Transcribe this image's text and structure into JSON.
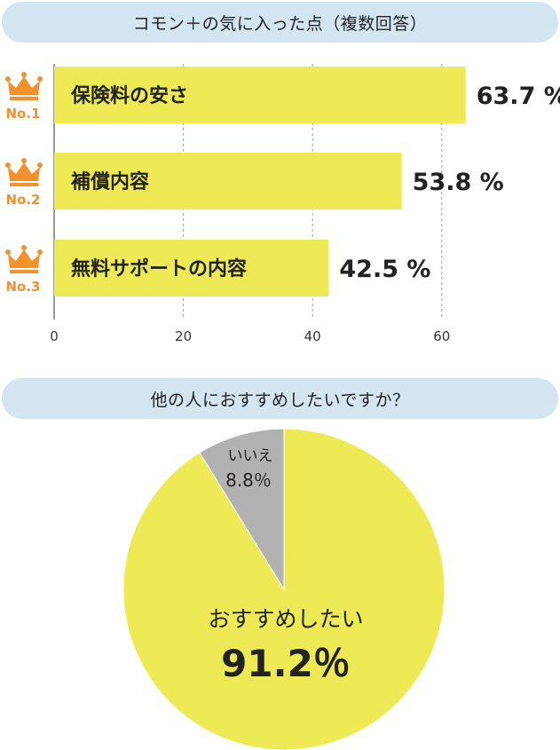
{
  "chart_data": [
    {
      "type": "bar",
      "orientation": "horizontal",
      "title": "コモン＋の気に入った点（複数回答）",
      "categories": [
        "保険料の安さ",
        "補償内容",
        "無料サポートの内容"
      ],
      "values": [
        63.7,
        53.8,
        42.5
      ],
      "value_labels": [
        "63.7 %",
        "53.8 %",
        "42.5 %"
      ],
      "ranks": [
        "No.1",
        "No.2",
        "No.3"
      ],
      "ticks": [
        "0",
        "20",
        "40",
        "60"
      ],
      "xlim": [
        0,
        70
      ],
      "xlabel": "",
      "ylabel": "",
      "grid": true,
      "colors": {
        "bar": "#eeea55",
        "rank": "#f3912d",
        "label": "#222222",
        "grid": "#9a9a9a"
      }
    },
    {
      "type": "pie",
      "title": "他の人におすすめしたいですか？",
      "slices": [
        {
          "label": "おすすめしたい",
          "value": 91.2,
          "value_label": "91.2％",
          "color": "#eeea55"
        },
        {
          "label": "いいえ",
          "value": 8.8,
          "value_label": "8.8％",
          "color": "#b2b2b2"
        }
      ]
    }
  ]
}
